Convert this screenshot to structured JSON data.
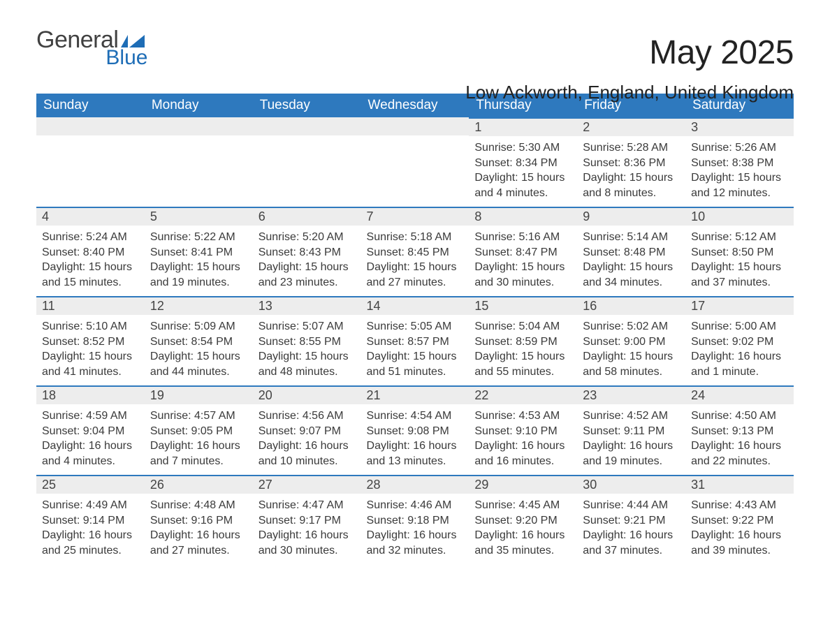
{
  "brand": {
    "general": "General",
    "blue": "Blue",
    "icon_color": "#1e6db6"
  },
  "header": {
    "month_title": "May 2025",
    "location": "Low Ackworth, England, United Kingdom"
  },
  "colors": {
    "header_bg": "#2e79be",
    "header_text": "#ffffff",
    "daynum_bg": "#ededed",
    "daynum_border": "#2e79be",
    "body_text": "#3a3a3a",
    "page_bg": "#ffffff"
  },
  "typography": {
    "month_title_fontsize": 48,
    "location_fontsize": 26,
    "weekday_fontsize": 19,
    "daynum_fontsize": 18,
    "body_fontsize": 16,
    "font_family": "Arial"
  },
  "calendar": {
    "type": "table",
    "columns": [
      "Sunday",
      "Monday",
      "Tuesday",
      "Wednesday",
      "Thursday",
      "Friday",
      "Saturday"
    ],
    "weeks": [
      [
        null,
        null,
        null,
        null,
        {
          "day": "1",
          "sunrise": "Sunrise: 5:30 AM",
          "sunset": "Sunset: 8:34 PM",
          "daylight": "Daylight: 15 hours and 4 minutes."
        },
        {
          "day": "2",
          "sunrise": "Sunrise: 5:28 AM",
          "sunset": "Sunset: 8:36 PM",
          "daylight": "Daylight: 15 hours and 8 minutes."
        },
        {
          "day": "3",
          "sunrise": "Sunrise: 5:26 AM",
          "sunset": "Sunset: 8:38 PM",
          "daylight": "Daylight: 15 hours and 12 minutes."
        }
      ],
      [
        {
          "day": "4",
          "sunrise": "Sunrise: 5:24 AM",
          "sunset": "Sunset: 8:40 PM",
          "daylight": "Daylight: 15 hours and 15 minutes."
        },
        {
          "day": "5",
          "sunrise": "Sunrise: 5:22 AM",
          "sunset": "Sunset: 8:41 PM",
          "daylight": "Daylight: 15 hours and 19 minutes."
        },
        {
          "day": "6",
          "sunrise": "Sunrise: 5:20 AM",
          "sunset": "Sunset: 8:43 PM",
          "daylight": "Daylight: 15 hours and 23 minutes."
        },
        {
          "day": "7",
          "sunrise": "Sunrise: 5:18 AM",
          "sunset": "Sunset: 8:45 PM",
          "daylight": "Daylight: 15 hours and 27 minutes."
        },
        {
          "day": "8",
          "sunrise": "Sunrise: 5:16 AM",
          "sunset": "Sunset: 8:47 PM",
          "daylight": "Daylight: 15 hours and 30 minutes."
        },
        {
          "day": "9",
          "sunrise": "Sunrise: 5:14 AM",
          "sunset": "Sunset: 8:48 PM",
          "daylight": "Daylight: 15 hours and 34 minutes."
        },
        {
          "day": "10",
          "sunrise": "Sunrise: 5:12 AM",
          "sunset": "Sunset: 8:50 PM",
          "daylight": "Daylight: 15 hours and 37 minutes."
        }
      ],
      [
        {
          "day": "11",
          "sunrise": "Sunrise: 5:10 AM",
          "sunset": "Sunset: 8:52 PM",
          "daylight": "Daylight: 15 hours and 41 minutes."
        },
        {
          "day": "12",
          "sunrise": "Sunrise: 5:09 AM",
          "sunset": "Sunset: 8:54 PM",
          "daylight": "Daylight: 15 hours and 44 minutes."
        },
        {
          "day": "13",
          "sunrise": "Sunrise: 5:07 AM",
          "sunset": "Sunset: 8:55 PM",
          "daylight": "Daylight: 15 hours and 48 minutes."
        },
        {
          "day": "14",
          "sunrise": "Sunrise: 5:05 AM",
          "sunset": "Sunset: 8:57 PM",
          "daylight": "Daylight: 15 hours and 51 minutes."
        },
        {
          "day": "15",
          "sunrise": "Sunrise: 5:04 AM",
          "sunset": "Sunset: 8:59 PM",
          "daylight": "Daylight: 15 hours and 55 minutes."
        },
        {
          "day": "16",
          "sunrise": "Sunrise: 5:02 AM",
          "sunset": "Sunset: 9:00 PM",
          "daylight": "Daylight: 15 hours and 58 minutes."
        },
        {
          "day": "17",
          "sunrise": "Sunrise: 5:00 AM",
          "sunset": "Sunset: 9:02 PM",
          "daylight": "Daylight: 16 hours and 1 minute."
        }
      ],
      [
        {
          "day": "18",
          "sunrise": "Sunrise: 4:59 AM",
          "sunset": "Sunset: 9:04 PM",
          "daylight": "Daylight: 16 hours and 4 minutes."
        },
        {
          "day": "19",
          "sunrise": "Sunrise: 4:57 AM",
          "sunset": "Sunset: 9:05 PM",
          "daylight": "Daylight: 16 hours and 7 minutes."
        },
        {
          "day": "20",
          "sunrise": "Sunrise: 4:56 AM",
          "sunset": "Sunset: 9:07 PM",
          "daylight": "Daylight: 16 hours and 10 minutes."
        },
        {
          "day": "21",
          "sunrise": "Sunrise: 4:54 AM",
          "sunset": "Sunset: 9:08 PM",
          "daylight": "Daylight: 16 hours and 13 minutes."
        },
        {
          "day": "22",
          "sunrise": "Sunrise: 4:53 AM",
          "sunset": "Sunset: 9:10 PM",
          "daylight": "Daylight: 16 hours and 16 minutes."
        },
        {
          "day": "23",
          "sunrise": "Sunrise: 4:52 AM",
          "sunset": "Sunset: 9:11 PM",
          "daylight": "Daylight: 16 hours and 19 minutes."
        },
        {
          "day": "24",
          "sunrise": "Sunrise: 4:50 AM",
          "sunset": "Sunset: 9:13 PM",
          "daylight": "Daylight: 16 hours and 22 minutes."
        }
      ],
      [
        {
          "day": "25",
          "sunrise": "Sunrise: 4:49 AM",
          "sunset": "Sunset: 9:14 PM",
          "daylight": "Daylight: 16 hours and 25 minutes."
        },
        {
          "day": "26",
          "sunrise": "Sunrise: 4:48 AM",
          "sunset": "Sunset: 9:16 PM",
          "daylight": "Daylight: 16 hours and 27 minutes."
        },
        {
          "day": "27",
          "sunrise": "Sunrise: 4:47 AM",
          "sunset": "Sunset: 9:17 PM",
          "daylight": "Daylight: 16 hours and 30 minutes."
        },
        {
          "day": "28",
          "sunrise": "Sunrise: 4:46 AM",
          "sunset": "Sunset: 9:18 PM",
          "daylight": "Daylight: 16 hours and 32 minutes."
        },
        {
          "day": "29",
          "sunrise": "Sunrise: 4:45 AM",
          "sunset": "Sunset: 9:20 PM",
          "daylight": "Daylight: 16 hours and 35 minutes."
        },
        {
          "day": "30",
          "sunrise": "Sunrise: 4:44 AM",
          "sunset": "Sunset: 9:21 PM",
          "daylight": "Daylight: 16 hours and 37 minutes."
        },
        {
          "day": "31",
          "sunrise": "Sunrise: 4:43 AM",
          "sunset": "Sunset: 9:22 PM",
          "daylight": "Daylight: 16 hours and 39 minutes."
        }
      ]
    ]
  }
}
